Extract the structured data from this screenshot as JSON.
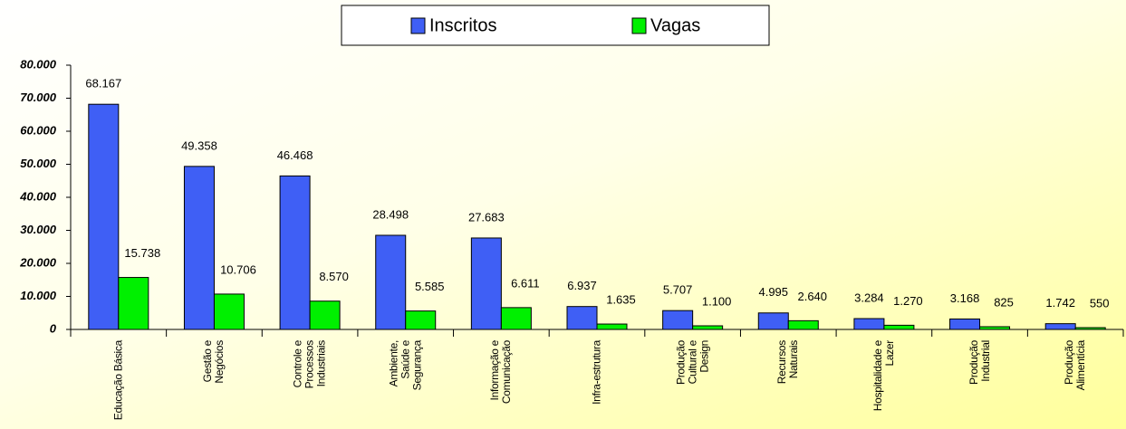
{
  "chart_data": {
    "type": "bar",
    "categories": [
      "Educação Básica",
      "Gestão e\nNegócios",
      "Controle e\nProcessos\nIndustriais",
      "Ambiente,\nSaúde e\nSegurança",
      "Informação e\nComunicação",
      "Infra-estrutura",
      "Produção\nCultural e\nDesign",
      "Recursos\nNaturais",
      "Hospitalidade e\nLazer",
      "Produção\nIndustrial",
      "Produção\nAlimentícia"
    ],
    "series": [
      {
        "name": "Inscritos",
        "color": "#3f5ff5",
        "values": [
          68167,
          49358,
          46468,
          28498,
          27683,
          6937,
          5707,
          4995,
          3284,
          3168,
          1742
        ],
        "value_labels": [
          "68.167",
          "49.358",
          "46.468",
          "28.498",
          "27.683",
          "6.937",
          "5.707",
          "4.995",
          "3.284",
          "3.168",
          "1.742"
        ]
      },
      {
        "name": "Vagas",
        "color": "#00f000",
        "values": [
          15738,
          10706,
          8570,
          5585,
          6611,
          1635,
          1100,
          2640,
          1270,
          825,
          550
        ],
        "value_labels": [
          "15.738",
          "10.706",
          "8.570",
          "5.585",
          "6.611",
          "1.635",
          "1.100",
          "2.640",
          "1.270",
          "825",
          "550"
        ]
      }
    ],
    "ylim": [
      0,
      80000
    ],
    "yticks": [
      0,
      {
        "value": 10000,
        "label": "10.000"
      },
      {
        "value": 20000,
        "label": "20.000"
      },
      {
        "value": 30000,
        "label": "30.000"
      },
      {
        "value": 40000,
        "label": "40.000"
      },
      {
        "value": 50000,
        "label": "50.000"
      },
      {
        "value": 60000,
        "label": "60.000"
      },
      {
        "value": 70000,
        "label": "70.000"
      },
      {
        "value": 80000,
        "label": "80.000"
      }
    ],
    "legend": "top",
    "grid": false
  }
}
